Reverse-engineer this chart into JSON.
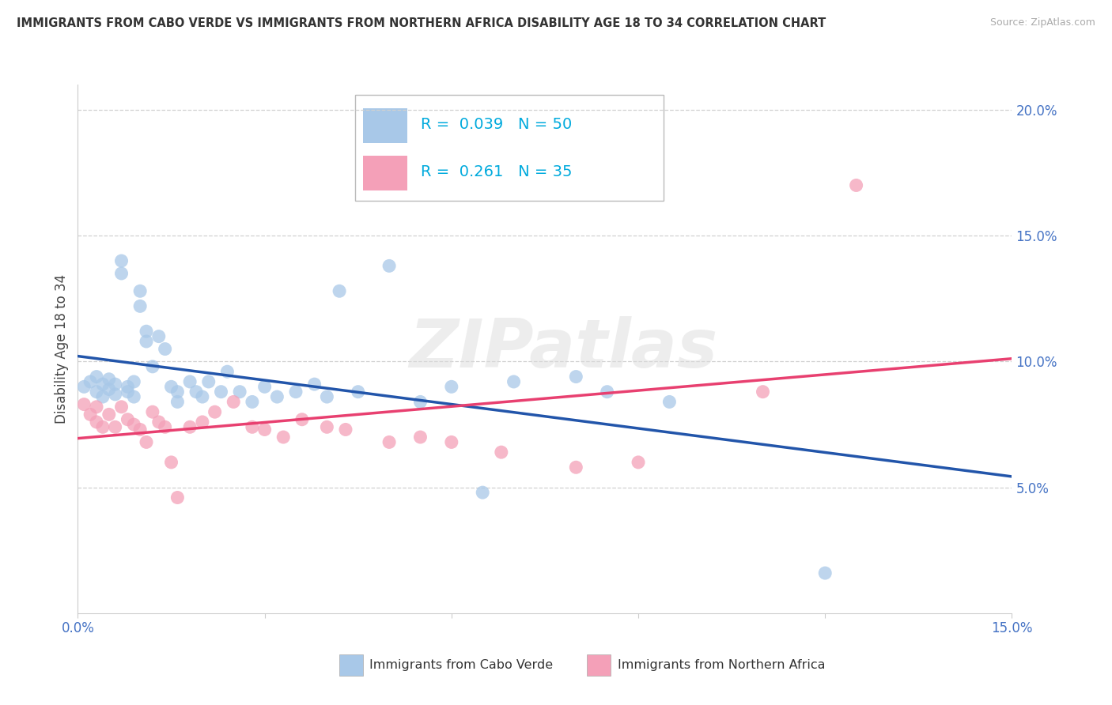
{
  "title": "IMMIGRANTS FROM CABO VERDE VS IMMIGRANTS FROM NORTHERN AFRICA DISABILITY AGE 18 TO 34 CORRELATION CHART",
  "source": "Source: ZipAtlas.com",
  "ylabel": "Disability Age 18 to 34",
  "R_blue": 0.039,
  "N_blue": 50,
  "R_pink": 0.261,
  "N_pink": 35,
  "blue_color": "#a8c8e8",
  "pink_color": "#f4a0b8",
  "blue_line_color": "#2255aa",
  "pink_line_color": "#e84070",
  "legend_label_blue": "Immigrants from Cabo Verde",
  "legend_label_pink": "Immigrants from Northern Africa",
  "watermark": "ZIPatlas",
  "blue_x": [
    0.001,
    0.002,
    0.003,
    0.003,
    0.004,
    0.004,
    0.005,
    0.005,
    0.006,
    0.006,
    0.007,
    0.007,
    0.008,
    0.008,
    0.009,
    0.009,
    0.01,
    0.01,
    0.011,
    0.011,
    0.012,
    0.013,
    0.014,
    0.015,
    0.016,
    0.016,
    0.018,
    0.019,
    0.02,
    0.021,
    0.023,
    0.024,
    0.026,
    0.028,
    0.03,
    0.032,
    0.035,
    0.038,
    0.04,
    0.042,
    0.045,
    0.05,
    0.055,
    0.06,
    0.065,
    0.07,
    0.08,
    0.085,
    0.095,
    0.12
  ],
  "blue_y": [
    0.09,
    0.092,
    0.088,
    0.094,
    0.086,
    0.091,
    0.089,
    0.093,
    0.087,
    0.091,
    0.14,
    0.135,
    0.09,
    0.088,
    0.092,
    0.086,
    0.128,
    0.122,
    0.112,
    0.108,
    0.098,
    0.11,
    0.105,
    0.09,
    0.088,
    0.084,
    0.092,
    0.088,
    0.086,
    0.092,
    0.088,
    0.096,
    0.088,
    0.084,
    0.09,
    0.086,
    0.088,
    0.091,
    0.086,
    0.128,
    0.088,
    0.138,
    0.084,
    0.09,
    0.048,
    0.092,
    0.094,
    0.088,
    0.084,
    0.016
  ],
  "pink_x": [
    0.001,
    0.002,
    0.003,
    0.003,
    0.004,
    0.005,
    0.006,
    0.007,
    0.008,
    0.009,
    0.01,
    0.011,
    0.012,
    0.013,
    0.014,
    0.015,
    0.016,
    0.018,
    0.02,
    0.022,
    0.025,
    0.028,
    0.03,
    0.033,
    0.036,
    0.04,
    0.043,
    0.05,
    0.055,
    0.06,
    0.068,
    0.08,
    0.09,
    0.11,
    0.125
  ],
  "pink_y": [
    0.083,
    0.079,
    0.076,
    0.082,
    0.074,
    0.079,
    0.074,
    0.082,
    0.077,
    0.075,
    0.073,
    0.068,
    0.08,
    0.076,
    0.074,
    0.06,
    0.046,
    0.074,
    0.076,
    0.08,
    0.084,
    0.074,
    0.073,
    0.07,
    0.077,
    0.074,
    0.073,
    0.068,
    0.07,
    0.068,
    0.064,
    0.058,
    0.06,
    0.088,
    0.17
  ]
}
